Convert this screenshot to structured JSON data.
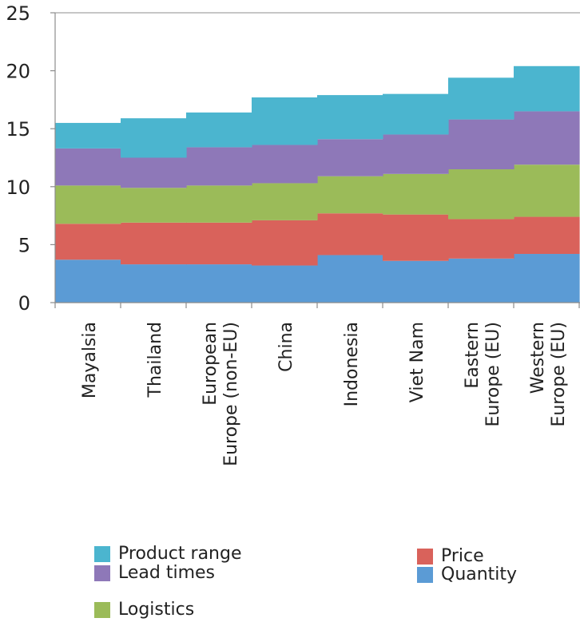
{
  "chart_data": {
    "type": "area",
    "stacked": true,
    "step": true,
    "categories": [
      "Mayalsia",
      "Thailand",
      "European Europe (non-EU)",
      "China",
      "Indonesia",
      "Viet Nam",
      "Eastern Europe (EU)",
      "Western Europe (EU)"
    ],
    "category_lines": [
      [
        "Mayalsia"
      ],
      [
        "Thailand"
      ],
      [
        "European",
        "Europe (non-EU)"
      ],
      [
        "China"
      ],
      [
        "Indonesia"
      ],
      [
        "Viet Nam"
      ],
      [
        "Eastern",
        "Europe (EU)"
      ],
      [
        "Western",
        "Europe (EU)"
      ]
    ],
    "series": [
      {
        "name": "Quantity",
        "color": "#5b9bd5",
        "values": [
          3.7,
          3.3,
          3.3,
          3.2,
          4.1,
          3.6,
          3.8,
          4.2
        ]
      },
      {
        "name": "Price",
        "color": "#d9625b",
        "values": [
          3.1,
          3.6,
          3.6,
          3.9,
          3.6,
          4.0,
          3.4,
          3.2
        ]
      },
      {
        "name": "Logistics",
        "color": "#9bbb59",
        "values": [
          3.3,
          3.0,
          3.2,
          3.2,
          3.2,
          3.5,
          4.3,
          4.5
        ]
      },
      {
        "name": "Lead times",
        "color": "#8e78b8",
        "values": [
          3.2,
          2.6,
          3.3,
          3.3,
          3.2,
          3.4,
          4.3,
          4.6
        ]
      },
      {
        "name": "Product range",
        "color": "#4bb5cf",
        "values": [
          2.2,
          3.4,
          3.0,
          4.1,
          3.8,
          3.5,
          3.6,
          3.9
        ]
      }
    ],
    "yticks": [
      0,
      5,
      10,
      15,
      20,
      25
    ],
    "ylim": [
      0,
      25
    ],
    "grid": false,
    "legend_position": "bottom",
    "legend_order": [
      "Product range",
      "Price",
      "Lead times",
      "Quantity",
      "Logistics"
    ]
  }
}
